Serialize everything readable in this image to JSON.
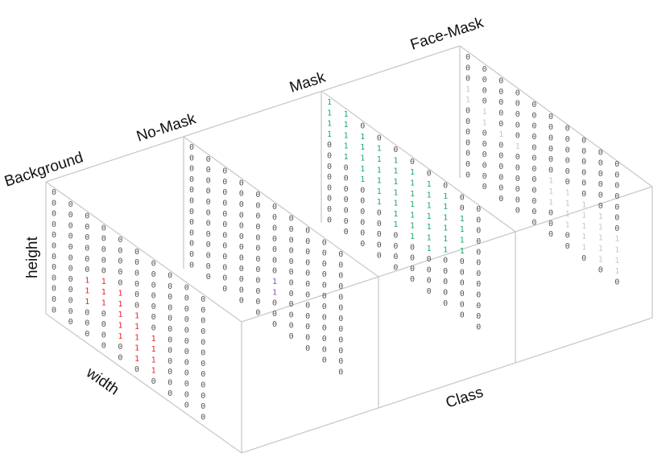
{
  "labels": {
    "class_names": [
      "Background",
      "No-Mask",
      "Mask",
      "Face-Mask"
    ],
    "height": "height",
    "width": "width",
    "class": "Class"
  },
  "grid": {
    "zero": "0",
    "one": "1",
    "rows": 12,
    "cols": 10
  },
  "colors": {
    "zero": "#555555",
    "background_one": "#e8242b",
    "no_mask_one": "#8d4fc2",
    "mask_one": "#1aa866",
    "face_mask_one": "#c8c8c8",
    "edges": "#c9c9c9"
  },
  "slices": [
    {
      "name": "Background",
      "one_color_key": "background_one",
      "ones": [
        [
          5,
          3
        ],
        [
          5,
          4
        ],
        [
          6,
          2
        ],
        [
          6,
          3
        ],
        [
          6,
          4
        ],
        [
          6,
          5
        ],
        [
          7,
          2
        ],
        [
          7,
          3
        ],
        [
          7,
          4
        ],
        [
          7,
          5
        ],
        [
          7,
          6
        ],
        [
          8,
          2
        ],
        [
          8,
          4
        ],
        [
          8,
          5
        ],
        [
          8,
          6
        ],
        [
          9,
          4
        ],
        [
          9,
          5
        ],
        [
          9,
          6
        ],
        [
          10,
          5
        ],
        [
          10,
          6
        ]
      ]
    },
    {
      "name": "No-Mask",
      "one_color_key": "no_mask_one",
      "ones": [
        [
          7,
          5
        ],
        [
          8,
          5
        ]
      ]
    },
    {
      "name": "Mask",
      "one_color_key": "mask_one",
      "ones": [
        [
          0,
          0
        ],
        [
          0,
          1
        ],
        [
          1,
          0
        ],
        [
          1,
          1
        ],
        [
          1,
          2
        ],
        [
          1,
          3
        ],
        [
          1,
          4
        ],
        [
          1,
          5
        ],
        [
          1,
          6
        ],
        [
          1,
          7
        ],
        [
          2,
          0
        ],
        [
          2,
          1
        ],
        [
          2,
          2
        ],
        [
          2,
          3
        ],
        [
          2,
          4
        ],
        [
          2,
          5
        ],
        [
          2,
          6
        ],
        [
          2,
          7
        ],
        [
          2,
          8
        ],
        [
          3,
          0
        ],
        [
          3,
          1
        ],
        [
          3,
          2
        ],
        [
          3,
          3
        ],
        [
          3,
          4
        ],
        [
          3,
          5
        ],
        [
          3,
          6
        ],
        [
          3,
          7
        ],
        [
          3,
          8
        ],
        [
          4,
          1
        ],
        [
          4,
          2
        ],
        [
          4,
          3
        ],
        [
          4,
          4
        ],
        [
          4,
          5
        ],
        [
          4,
          6
        ],
        [
          4,
          7
        ],
        [
          4,
          8
        ],
        [
          5,
          2
        ],
        [
          5,
          3
        ],
        [
          5,
          4
        ],
        [
          5,
          5
        ],
        [
          5,
          6
        ],
        [
          5,
          7
        ],
        [
          5,
          8
        ],
        [
          6,
          3
        ],
        [
          6,
          4
        ],
        [
          6,
          5
        ],
        [
          6,
          6
        ],
        [
          6,
          7
        ],
        [
          7,
          4
        ],
        [
          7,
          5
        ],
        [
          7,
          6
        ]
      ]
    },
    {
      "name": "Face-Mask",
      "one_color_key": "face_mask_one",
      "ones": [
        [
          3,
          0
        ],
        [
          4,
          0
        ],
        [
          4,
          1
        ],
        [
          5,
          1
        ],
        [
          5,
          2
        ],
        [
          5,
          3
        ],
        [
          6,
          5
        ],
        [
          6,
          6
        ],
        [
          6,
          7
        ],
        [
          6,
          8
        ],
        [
          7,
          5
        ],
        [
          7,
          6
        ],
        [
          7,
          7
        ],
        [
          7,
          8
        ],
        [
          7,
          9
        ],
        [
          8,
          5
        ],
        [
          8,
          6
        ],
        [
          8,
          7
        ],
        [
          8,
          8
        ],
        [
          8,
          9
        ],
        [
          9,
          6
        ],
        [
          9,
          7
        ],
        [
          9,
          8
        ],
        [
          9,
          9
        ],
        [
          10,
          7
        ],
        [
          10,
          8
        ],
        [
          10,
          9
        ]
      ]
    }
  ]
}
